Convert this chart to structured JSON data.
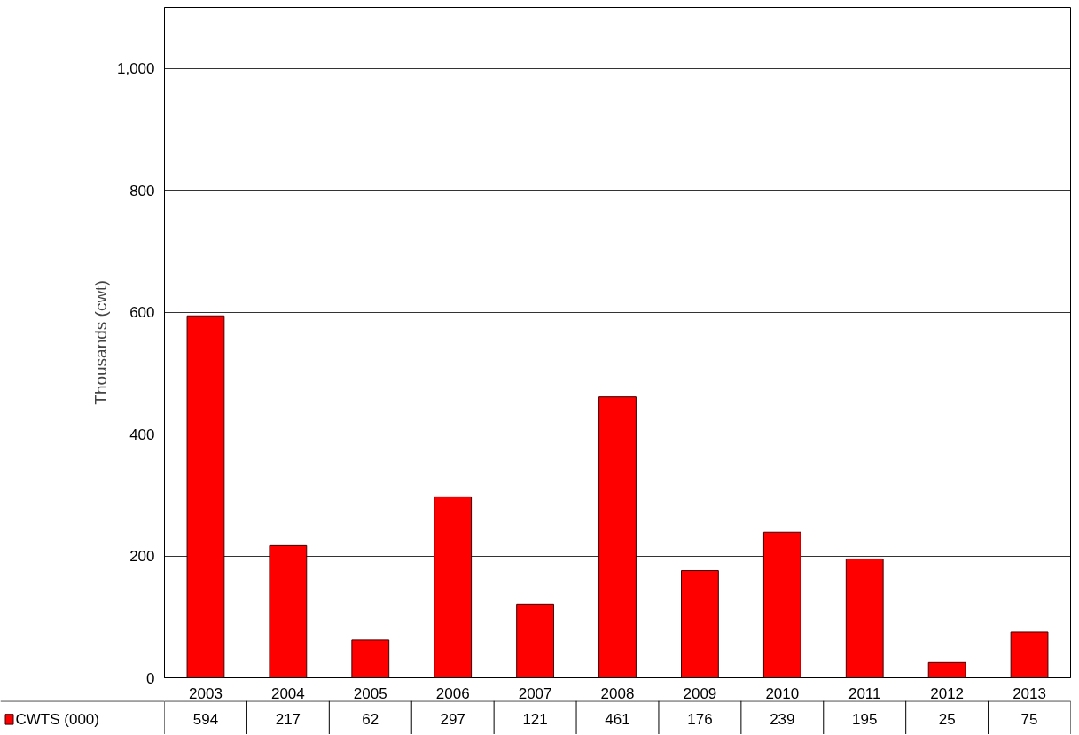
{
  "chart_data": {
    "type": "bar",
    "ylabel": "Thousands (cwt)",
    "categories": [
      "2003",
      "2004",
      "2005",
      "2006",
      "2007",
      "2008",
      "2009",
      "2010",
      "2011",
      "2012",
      "2013"
    ],
    "series": [
      {
        "name": "CWTS (000)",
        "color": "#ff0000",
        "values": [
          594,
          217,
          62,
          297,
          121,
          461,
          176,
          239,
          195,
          25,
          75
        ]
      }
    ],
    "ylim": [
      0,
      1100
    ],
    "yticks": [
      0,
      200,
      400,
      600,
      {
        "value": 800,
        "label": "800"
      },
      {
        "value": 1000,
        "label": "1,000"
      }
    ],
    "grid": "y",
    "legend": "bottom",
    "data_labels": true
  }
}
